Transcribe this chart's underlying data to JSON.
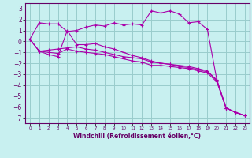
{
  "background_color": "#c8f0f0",
  "grid_color": "#99cccc",
  "line_color": "#aa00aa",
  "marker": "+",
  "xlabel": "Windchill (Refroidissement éolien,°C)",
  "xlim": [
    -0.5,
    23.5
  ],
  "ylim": [
    -7.5,
    3.5
  ],
  "yticks": [
    -7,
    -6,
    -5,
    -4,
    -3,
    -2,
    -1,
    0,
    1,
    2,
    3
  ],
  "xticks": [
    0,
    1,
    2,
    3,
    4,
    5,
    6,
    7,
    8,
    9,
    10,
    11,
    12,
    13,
    14,
    15,
    16,
    17,
    18,
    19,
    20,
    21,
    22,
    23
  ],
  "series": [
    {
      "x": [
        0,
        1,
        2,
        3,
        4,
        5,
        6,
        7,
        8,
        9,
        10,
        11,
        12,
        13,
        14,
        15,
        16,
        17,
        18,
        19,
        20,
        21,
        22,
        23
      ],
      "y": [
        0.2,
        1.7,
        1.6,
        1.6,
        0.9,
        1.0,
        1.3,
        1.5,
        1.4,
        1.7,
        1.5,
        1.6,
        1.5,
        2.8,
        2.6,
        2.8,
        2.5,
        1.7,
        1.8,
        1.1,
        -3.5,
        -6.1,
        -6.5,
        -6.8
      ]
    },
    {
      "x": [
        0,
        1,
        2,
        3,
        4,
        5,
        6,
        7,
        8,
        9,
        10,
        11,
        12,
        13,
        14,
        15,
        16,
        17,
        18,
        19,
        20,
        21,
        22,
        23
      ],
      "y": [
        0.2,
        -0.9,
        -0.8,
        -0.7,
        -0.6,
        -0.5,
        -0.7,
        -0.8,
        -1.0,
        -1.2,
        -1.4,
        -1.5,
        -1.6,
        -1.9,
        -2.0,
        -2.1,
        -2.2,
        -2.3,
        -2.5,
        -2.7,
        -3.6,
        -6.1,
        -6.5,
        -6.8
      ]
    },
    {
      "x": [
        0,
        1,
        2,
        3,
        4,
        5,
        6,
        7,
        8,
        9,
        10,
        11,
        12,
        13,
        14,
        15,
        16,
        17,
        18,
        19,
        20,
        21,
        22,
        23
      ],
      "y": [
        0.2,
        -0.9,
        -1.0,
        -1.1,
        -0.7,
        -0.9,
        -1.0,
        -1.1,
        -1.2,
        -1.4,
        -1.6,
        -1.8,
        -1.9,
        -2.2,
        -2.2,
        -2.3,
        -2.4,
        -2.5,
        -2.7,
        -2.9,
        -3.7,
        -6.1,
        -6.5,
        -6.8
      ]
    },
    {
      "x": [
        0,
        1,
        2,
        3,
        4,
        5,
        6,
        7,
        8,
        9,
        10,
        11,
        12,
        13,
        14,
        15,
        16,
        17,
        18,
        19,
        20,
        21,
        22,
        23
      ],
      "y": [
        0.2,
        -0.9,
        -1.2,
        -1.4,
        1.0,
        -0.3,
        -0.3,
        -0.2,
        -0.5,
        -0.7,
        -1.0,
        -1.3,
        -1.5,
        -1.8,
        -2.0,
        -2.1,
        -2.3,
        -2.4,
        -2.6,
        -2.8,
        -3.5,
        -6.1,
        -6.5,
        -6.8
      ]
    }
  ]
}
